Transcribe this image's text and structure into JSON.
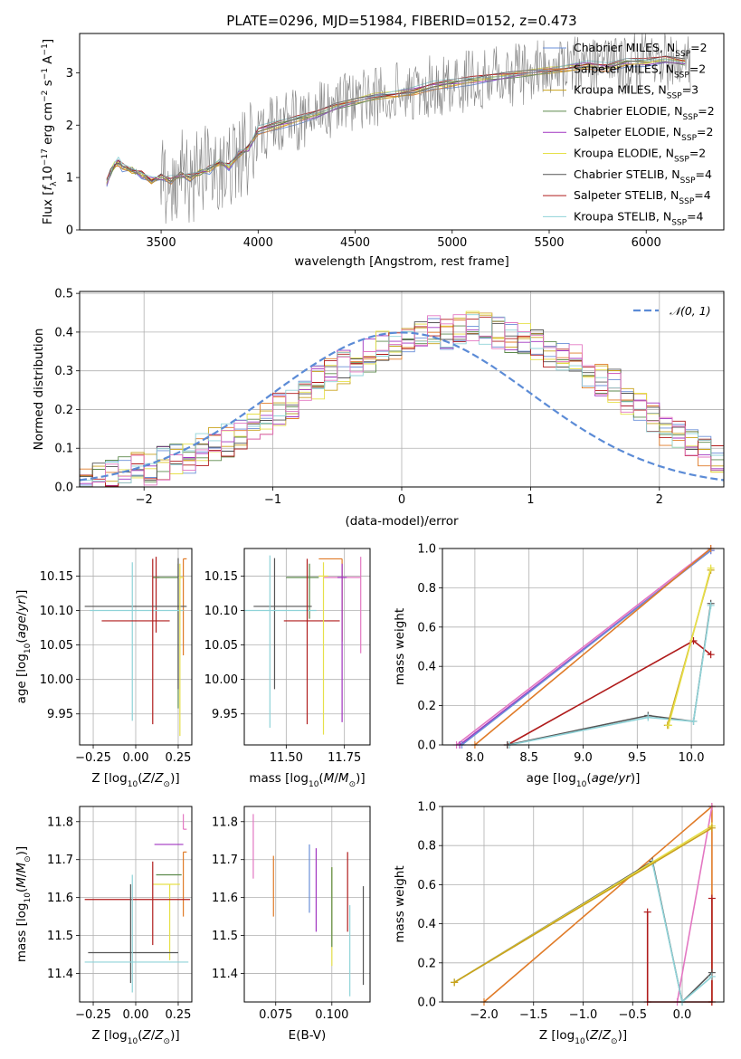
{
  "chart_data": [
    {
      "type": "line",
      "title": "PLATE=0296, MJD=51984, FIBERID=0152, z=0.473",
      "xlabel": "wavelength [Angstrom, rest frame]",
      "ylabel": "Flux [f_λ 10^-17 erg cm^-2 s^-1 A^-1]",
      "xlim": [
        3080,
        6400
      ],
      "ylim": [
        0,
        3.75
      ],
      "xticks": [
        "3500",
        "4000",
        "4500",
        "5000",
        "5500",
        "6000"
      ],
      "yticks": [
        "0",
        "1",
        "2",
        "3"
      ],
      "grid": false,
      "legend_position": "top-right",
      "data_spectrum": {
        "color": "#808080",
        "x": [
          3220,
          3240,
          3260,
          3280,
          3300,
          3350,
          3400,
          3450,
          3500,
          3550,
          3600,
          3650,
          3700,
          3750,
          3800,
          3850,
          3900,
          3950,
          4000,
          4100,
          4200,
          4300,
          4400,
          4500,
          4600,
          4700,
          4800,
          4900,
          5000,
          5100,
          5200,
          5300,
          5400,
          5500,
          5600,
          5700,
          5800,
          5900,
          6000,
          6100,
          6200
        ],
        "y": [
          0.9,
          1.1,
          1.25,
          1.3,
          1.2,
          1.15,
          1.05,
          0.95,
          1.0,
          0.95,
          1.05,
          1.0,
          1.1,
          1.15,
          1.3,
          1.2,
          1.45,
          1.55,
          1.9,
          2.0,
          2.1,
          2.2,
          2.35,
          2.45,
          2.55,
          2.6,
          2.65,
          2.75,
          2.8,
          2.85,
          2.9,
          2.95,
          3.0,
          3.05,
          3.1,
          3.15,
          3.1,
          3.2,
          3.2,
          3.25,
          3.2
        ]
      },
      "model_x": [
        3220,
        3240,
        3260,
        3280,
        3300,
        3350,
        3400,
        3450,
        3500,
        3550,
        3600,
        3650,
        3700,
        3750,
        3800,
        3850,
        3900,
        3950,
        4000,
        4100,
        4200,
        4300,
        4400,
        4500,
        4600,
        4700,
        4800,
        4900,
        5000,
        5100,
        5200,
        5300,
        5400,
        5500,
        5600,
        5700,
        5800,
        5900,
        6000,
        6100,
        6200
      ],
      "model_y": [
        0.9,
        1.1,
        1.25,
        1.3,
        1.2,
        1.15,
        1.05,
        0.95,
        1.0,
        0.95,
        1.05,
        1.0,
        1.1,
        1.15,
        1.3,
        1.2,
        1.45,
        1.55,
        1.9,
        2.0,
        2.1,
        2.2,
        2.35,
        2.45,
        2.55,
        2.6,
        2.65,
        2.75,
        2.8,
        2.85,
        2.9,
        2.95,
        3.0,
        3.05,
        3.1,
        3.15,
        3.1,
        3.2,
        3.2,
        3.25,
        3.2
      ],
      "series": [
        {
          "name": "Chabrier MILES, N_SSP=2",
          "color": "#6a8fd8"
        },
        {
          "name": "Salpeter MILES, N_SSP=2",
          "color": "#e07b28"
        },
        {
          "name": "Kroupa MILES, N_SSP=3",
          "color": "#c9a21c"
        },
        {
          "name": "Chabrier ELODIE, N_SSP=2",
          "color": "#5d8a4c"
        },
        {
          "name": "Salpeter ELODIE, N_SSP=2",
          "color": "#a034c0"
        },
        {
          "name": "Kroupa ELODIE, N_SSP=2",
          "color": "#e6e04a"
        },
        {
          "name": "Chabrier STELIB, N_SSP=4",
          "color": "#555555"
        },
        {
          "name": "Salpeter STELIB, N_SSP=4",
          "color": "#b01c1c"
        },
        {
          "name": "Kroupa STELIB, N_SSP=4",
          "color": "#8fd3d8"
        }
      ]
    },
    {
      "type": "bar",
      "xlabel": "(data-model)/error",
      "ylabel": "Normed distribution",
      "xlim": [
        -2.5,
        2.5
      ],
      "ylim": [
        0,
        0.505
      ],
      "xticks": [
        "−2",
        "−1",
        "0",
        "1",
        "2"
      ],
      "yticks": [
        "0.0",
        "0.1",
        "0.2",
        "0.3",
        "0.4",
        "0.5"
      ],
      "grid": true,
      "legend_position": "top-right",
      "legend": [
        "𝒩(0, 1)"
      ],
      "gauss_color": "#5b8bd6",
      "bin_width": 0.1,
      "hist_base": [
        0.02,
        0.03,
        0.03,
        0.04,
        0.05,
        0.05,
        0.06,
        0.07,
        0.08,
        0.1,
        0.11,
        0.12,
        0.14,
        0.16,
        0.18,
        0.2,
        0.22,
        0.25,
        0.27,
        0.29,
        0.31,
        0.33,
        0.34,
        0.36,
        0.37,
        0.38,
        0.39,
        0.4,
        0.4,
        0.41,
        0.42,
        0.41,
        0.4,
        0.39,
        0.38,
        0.37,
        0.35,
        0.34,
        0.33,
        0.3,
        0.28,
        0.26,
        0.23,
        0.2,
        0.18,
        0.15,
        0.13,
        0.11,
        0.09,
        0.07
      ],
      "hist_colors": [
        "#6a8fd8",
        "#e07b28",
        "#c9a21c",
        "#5d8a4c",
        "#a034c0",
        "#e6e04a",
        "#555555",
        "#b01c1c",
        "#8fd3d8",
        "#e377c2"
      ]
    },
    {
      "type": "scatter",
      "xlabel": "Z [log10(Z/Z⊙)]",
      "ylabel": "age  [log10(age/yr)]",
      "xlim": [
        -0.33,
        0.33
      ],
      "ylim": [
        9.905,
        10.19
      ],
      "xticks": [
        "−0.25",
        "0.00",
        "0.25"
      ],
      "yticks": [
        "9.95",
        "10.00",
        "10.05",
        "10.10",
        "10.15"
      ],
      "grid": true,
      "points": [
        {
          "x": 0.12,
          "y": 10.148,
          "x_err": [
            0.02,
            0.02
          ],
          "y_err": [
            0.08,
            0.03
          ],
          "color": "#b01c1c"
        },
        {
          "x": 0.25,
          "y": 10.148,
          "x_err": [
            0.15,
            0.0
          ],
          "y_err": [
            0.19,
            0.02
          ],
          "color": "#5d8a4c"
        },
        {
          "x": 0.28,
          "y": 10.175,
          "x_err": [
            0.0,
            0.02
          ],
          "y_err": [
            0.14,
            0.0
          ],
          "color": "#e07b28"
        },
        {
          "x": 0.25,
          "y": 10.106,
          "x_err": [
            0.55,
            0.05
          ],
          "y_err": [
            0.12,
            0.07
          ],
          "color": "#555555"
        },
        {
          "x": -0.02,
          "y": 10.1,
          "x_err": [
            0.25,
            0.3
          ],
          "y_err": [
            0.16,
            0.07
          ],
          "color": "#8fd3d8"
        },
        {
          "x": 0.1,
          "y": 10.085,
          "x_err": [
            0.3,
            0.1
          ],
          "y_err": [
            0.15,
            0.09
          ],
          "color": "#b01c1c"
        },
        {
          "x": 0.26,
          "y": 10.148,
          "x_err": [
            0.0,
            0.02
          ],
          "y_err": [
            0.23,
            0.02
          ],
          "color": "#e6e04a"
        }
      ]
    },
    {
      "type": "scatter",
      "xlabel": "mass [log10(M/M⊙)]",
      "ylabel": "",
      "xlim": [
        11.32,
        11.86
      ],
      "ylim": [
        9.905,
        10.19
      ],
      "xticks": [
        "11.50",
        "11.75"
      ],
      "yticks": [
        "9.95",
        "10.00",
        "10.05",
        "10.10",
        "10.15"
      ],
      "grid": true,
      "points": [
        {
          "x": 11.6,
          "y": 10.148,
          "x_err": [
            0.1,
            0.04
          ],
          "y_err": [
            0.06,
            0.02
          ],
          "color": "#5d8a4c"
        },
        {
          "x": 11.74,
          "y": 10.175,
          "x_err": [
            0.1,
            0.0
          ],
          "y_err": [
            0.12,
            0.0
          ],
          "color": "#e07b28"
        },
        {
          "x": 11.82,
          "y": 10.148,
          "x_err": [
            0.16,
            0.0
          ],
          "y_err": [
            0.11,
            0.03
          ],
          "color": "#e377c2"
        },
        {
          "x": 11.45,
          "y": 10.106,
          "x_err": [
            0.09,
            0.16
          ],
          "y_err": [
            0.12,
            0.07
          ],
          "color": "#555555"
        },
        {
          "x": 11.43,
          "y": 10.1,
          "x_err": [
            0.11,
            0.2
          ],
          "y_err": [
            0.17,
            0.08
          ],
          "color": "#8fd3d8"
        },
        {
          "x": 11.59,
          "y": 10.085,
          "x_err": [
            0.1,
            0.14
          ],
          "y_err": [
            0.15,
            0.09
          ],
          "color": "#b01c1c"
        },
        {
          "x": 11.66,
          "y": 10.15,
          "x_err": [
            0.02,
            0.02
          ],
          "y_err": [
            0.23,
            0.02
          ],
          "color": "#e6e04a"
        },
        {
          "x": 11.74,
          "y": 10.148,
          "x_err": [
            0.02,
            0.02
          ],
          "y_err": [
            0.21,
            0.02
          ],
          "color": "#a034c0"
        }
      ]
    },
    {
      "type": "line",
      "xlabel": "age  [log10(age/yr)]",
      "ylabel": "mass weight",
      "xlim": [
        7.7,
        10.3
      ],
      "ylim": [
        0,
        1
      ],
      "xticks": [
        "8.0",
        "8.5",
        "9.0",
        "9.5",
        "10.0"
      ],
      "yticks": [
        "0.0",
        "0.2",
        "0.4",
        "0.6",
        "0.8",
        "1.0"
      ],
      "grid": true,
      "series": [
        {
          "x": [
            7.83,
            10.18
          ],
          "y": [
            0.0,
            1.0
          ],
          "color": "#e377c2"
        },
        {
          "x": [
            7.86,
            10.18
          ],
          "y": [
            0.0,
            0.99
          ],
          "color": "#a034c0"
        },
        {
          "x": [
            7.88,
            10.18
          ],
          "y": [
            0.0,
            0.99
          ],
          "color": "#6a8fd8"
        },
        {
          "x": [
            8.0,
            10.18
          ],
          "y": [
            0.0,
            1.0
          ],
          "color": "#e07b28"
        },
        {
          "x": [
            8.3,
            10.02,
            10.18
          ],
          "y": [
            0.0,
            0.53,
            0.46
          ],
          "color": "#b01c1c"
        },
        {
          "x": [
            8.3,
            9.6,
            10.02,
            10.18
          ],
          "y": [
            0.0,
            0.15,
            0.12,
            0.72
          ],
          "color": "#555555"
        },
        {
          "x": [
            8.32,
            9.6,
            10.02,
            10.18
          ],
          "y": [
            0.0,
            0.14,
            0.12,
            0.71
          ],
          "color": "#8fd3d8"
        },
        {
          "x": [
            9.78,
            10.18
          ],
          "y": [
            0.1,
            0.89
          ],
          "color": "#c9a21c"
        },
        {
          "x": [
            9.79,
            10.18
          ],
          "y": [
            0.1,
            0.9
          ],
          "color": "#e6e04a"
        }
      ]
    },
    {
      "type": "scatter",
      "xlabel": "Z [log10(Z/Z⊙)]",
      "ylabel": "mass [log10(M/M⊙)]",
      "xlim": [
        -0.33,
        0.33
      ],
      "ylim": [
        11.325,
        11.84
      ],
      "xticks": [
        "−0.25",
        "0.00",
        "0.25"
      ],
      "yticks": [
        "11.4",
        "11.5",
        "11.6",
        "11.7",
        "11.8"
      ],
      "grid": true,
      "points": [
        {
          "x": 0.28,
          "y": 11.78,
          "x_err": [
            0.0,
            0.02
          ],
          "y_err": [
            0.0,
            0.04
          ],
          "color": "#e377c2"
        },
        {
          "x": 0.24,
          "y": 11.74,
          "x_err": [
            0.13,
            0.04
          ],
          "y_err": [
            0.0,
            0.0
          ],
          "color": "#a034c0"
        },
        {
          "x": 0.28,
          "y": 11.72,
          "x_err": [
            0.0,
            0.02
          ],
          "y_err": [
            0.17,
            0.0
          ],
          "color": "#e07b28"
        },
        {
          "x": 0.22,
          "y": 11.66,
          "x_err": [
            0.1,
            0.05
          ],
          "y_err": [
            0.0,
            0.0
          ],
          "color": "#5d8a4c"
        },
        {
          "x": 0.2,
          "y": 11.635,
          "x_err": [
            0.1,
            0.06
          ],
          "y_err": [
            0.2,
            0.0
          ],
          "color": "#e6e04a"
        },
        {
          "x": 0.1,
          "y": 11.595,
          "x_err": [
            0.4,
            0.22
          ],
          "y_err": [
            0.12,
            0.1
          ],
          "color": "#b01c1c"
        },
        {
          "x": -0.03,
          "y": 11.455,
          "x_err": [
            0.25,
            0.28
          ],
          "y_err": [
            0.08,
            0.18
          ],
          "color": "#555555"
        },
        {
          "x": -0.02,
          "y": 11.43,
          "x_err": [
            0.28,
            0.33
          ],
          "y_err": [
            0.08,
            0.23
          ],
          "color": "#8fd3d8"
        }
      ]
    },
    {
      "type": "scatter",
      "xlabel": "E(B-V)",
      "ylabel": "",
      "xlim": [
        0.061,
        0.117
      ],
      "ylim": [
        11.325,
        11.84
      ],
      "xticks": [
        "0.075",
        "0.100"
      ],
      "yticks": [
        "11.4",
        "11.5",
        "11.6",
        "11.7",
        "11.8"
      ],
      "grid": true,
      "points": [
        {
          "x": 0.065,
          "y": 11.73,
          "y_err": [
            0.08,
            0.09
          ],
          "color": "#e377c2"
        },
        {
          "x": 0.074,
          "y": 11.63,
          "y_err": [
            0.08,
            0.08
          ],
          "color": "#e07b28"
        },
        {
          "x": 0.09,
          "y": 11.65,
          "y_err": [
            0.09,
            0.09
          ],
          "color": "#6a8fd8"
        },
        {
          "x": 0.093,
          "y": 11.59,
          "y_err": [
            0.08,
            0.14
          ],
          "color": "#a034c0"
        },
        {
          "x": 0.1,
          "y": 11.54,
          "y_err": [
            0.12,
            0.14
          ],
          "color": "#e6e04a"
        },
        {
          "x": 0.1,
          "y": 11.58,
          "y_err": [
            0.11,
            0.1
          ],
          "color": "#5d8a4c"
        },
        {
          "x": 0.107,
          "y": 11.63,
          "y_err": [
            0.12,
            0.09
          ],
          "color": "#b01c1c"
        },
        {
          "x": 0.108,
          "y": 11.47,
          "y_err": [
            0.13,
            0.11
          ],
          "color": "#8fd3d8"
        },
        {
          "x": 0.114,
          "y": 11.5,
          "y_err": [
            0.13,
            0.13
          ],
          "color": "#555555"
        }
      ]
    },
    {
      "type": "line",
      "xlabel": "Z [log10(Z/Z⊙)]",
      "ylabel": "mass weight",
      "xlim": [
        -2.42,
        0.42
      ],
      "ylim": [
        0,
        1
      ],
      "xticks": [
        "−2.0",
        "−1.5",
        "−1.0",
        "−0.5",
        "0.0"
      ],
      "yticks": [
        "0.0",
        "0.2",
        "0.4",
        "0.6",
        "0.8",
        "1.0"
      ],
      "grid": true,
      "series": [
        {
          "x": [
            -2.0,
            0.3,
            0.3
          ],
          "y": [
            0.0,
            1.0,
            0.0
          ],
          "color": "#e07b28"
        },
        {
          "x": [
            -0.05,
            0.3
          ],
          "y": [
            0.0,
            1.0
          ],
          "color": "#e377c2"
        },
        {
          "x": [
            -0.35,
            -0.35,
            0.3,
            0.3
          ],
          "y": [
            0.46,
            0.0,
            0.0,
            0.53
          ],
          "color": "#b01c1c"
        },
        {
          "x": [
            -2.3,
            -0.3,
            0.0,
            0.3
          ],
          "y": [
            0.1,
            0.72,
            0.0,
            0.15
          ],
          "color": "#555555"
        },
        {
          "x": [
            -2.3,
            -0.3,
            0.0,
            0.3
          ],
          "y": [
            0.1,
            0.71,
            0.0,
            0.13
          ],
          "color": "#8fd3d8"
        },
        {
          "x": [
            -2.3,
            0.3
          ],
          "y": [
            0.1,
            0.9
          ],
          "color": "#e6e04a"
        },
        {
          "x": [
            -2.3,
            0.3
          ],
          "y": [
            0.1,
            0.89
          ],
          "color": "#c9a21c"
        }
      ]
    }
  ]
}
